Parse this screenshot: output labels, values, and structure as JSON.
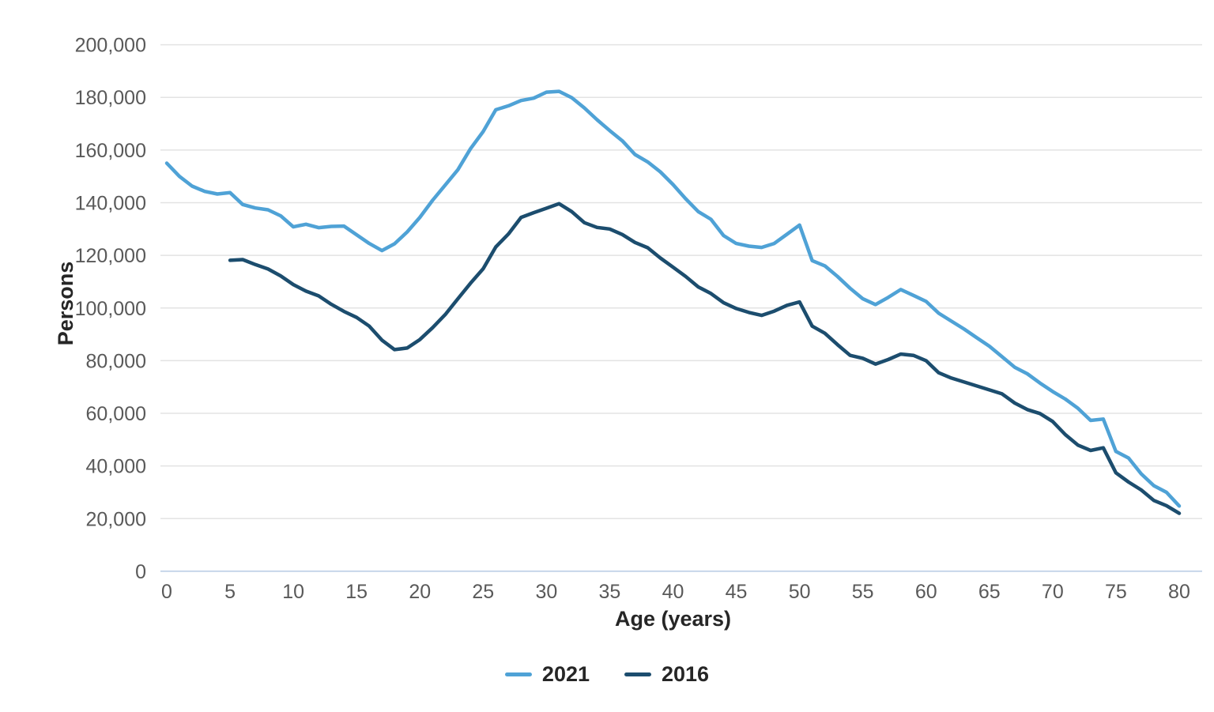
{
  "chart_data": {
    "type": "line",
    "title": "",
    "xlabel": "Age (years)",
    "ylabel": "Persons",
    "grid": "horizontal-only",
    "legend_position": "bottom-center",
    "x_axis": {
      "title": "Age (years)",
      "min": 0,
      "max": 80,
      "ticks": [
        {
          "value": 0,
          "label": "0"
        },
        {
          "value": 5,
          "label": "5"
        },
        {
          "value": 10,
          "label": "10"
        },
        {
          "value": 15,
          "label": "15"
        },
        {
          "value": 20,
          "label": "20"
        },
        {
          "value": 25,
          "label": "25"
        },
        {
          "value": 30,
          "label": "30"
        },
        {
          "value": 35,
          "label": "35"
        },
        {
          "value": 40,
          "label": "40"
        },
        {
          "value": 45,
          "label": "45"
        },
        {
          "value": 50,
          "label": "50"
        },
        {
          "value": 55,
          "label": "55"
        },
        {
          "value": 60,
          "label": "60"
        },
        {
          "value": 65,
          "label": "65"
        },
        {
          "value": 70,
          "label": "70"
        },
        {
          "value": 75,
          "label": "75"
        },
        {
          "value": 80,
          "label": "80"
        }
      ]
    },
    "y_axis": {
      "title": "Persons",
      "min": 0,
      "max": 200000,
      "ticks": [
        {
          "value": 0,
          "label": "0"
        },
        {
          "value": 20000,
          "label": "20,000"
        },
        {
          "value": 40000,
          "label": "40,000"
        },
        {
          "value": 60000,
          "label": "60,000"
        },
        {
          "value": 80000,
          "label": "80,000"
        },
        {
          "value": 100000,
          "label": "100,000"
        },
        {
          "value": 120000,
          "label": "120,000"
        },
        {
          "value": 140000,
          "label": "140,000"
        },
        {
          "value": 160000,
          "label": "160,000"
        },
        {
          "value": 180000,
          "label": "180,000"
        },
        {
          "value": 200000,
          "label": "200,000"
        }
      ]
    },
    "series": [
      {
        "name": "2021",
        "color": "#4FA2D6",
        "x_start": 0,
        "values": [
          155000,
          150000,
          146300,
          144300,
          143300,
          143800,
          139300,
          138000,
          137300,
          135000,
          130800,
          131800,
          130500,
          131000,
          131100,
          127800,
          124500,
          121800,
          124400,
          128900,
          134400,
          140900,
          146700,
          152500,
          160500,
          167000,
          175300,
          176800,
          178800,
          179700,
          182000,
          182300,
          179900,
          176000,
          171500,
          167400,
          163500,
          158300,
          155500,
          151700,
          146900,
          141500,
          136600,
          133700,
          127500,
          124500,
          123500,
          123000,
          124500,
          128000,
          131500,
          118000,
          116000,
          112000,
          107500,
          103500,
          101300,
          104000,
          107000,
          104800,
          102500,
          98000,
          95000,
          92000,
          88700,
          85500,
          81500,
          77500,
          75000,
          71500,
          68300,
          65400,
          61900,
          57300,
          57800,
          45500,
          43000,
          37000,
          32500,
          30000,
          24800
        ]
      },
      {
        "name": "2016",
        "color": "#1C4D6E",
        "x_start": 5,
        "values": [
          118100,
          118400,
          116500,
          114800,
          112200,
          108900,
          106400,
          104600,
          101400,
          98700,
          96400,
          93100,
          87800,
          84200,
          84800,
          88000,
          92500,
          97500,
          103500,
          109400,
          114900,
          123200,
          128100,
          134400,
          136200,
          137900,
          139600,
          136600,
          132400,
          130600,
          130000,
          127900,
          124900,
          122900,
          119000,
          115500,
          112000,
          108000,
          105500,
          102000,
          99800,
          98300,
          97200,
          98800,
          101000,
          102300,
          93100,
          90400,
          86100,
          82000,
          80900,
          78700,
          80400,
          82500,
          82000,
          80000,
          75400,
          73400,
          71900,
          70400,
          68900,
          67400,
          63900,
          61400,
          59900,
          56900,
          51900,
          47900,
          45900,
          46900,
          37400,
          33900,
          30900,
          26900,
          24900,
          22000
        ]
      }
    ],
    "style": {
      "gridline_color": "#e3e3e3",
      "baseline_color": "#c7d6ea",
      "tick_label_color": "#595959",
      "title_color": "#262626",
      "line_width": 4.5
    }
  },
  "legend": {
    "items": [
      {
        "label": "2021",
        "color": "#4FA2D6"
      },
      {
        "label": "2016",
        "color": "#1C4D6E"
      }
    ]
  }
}
